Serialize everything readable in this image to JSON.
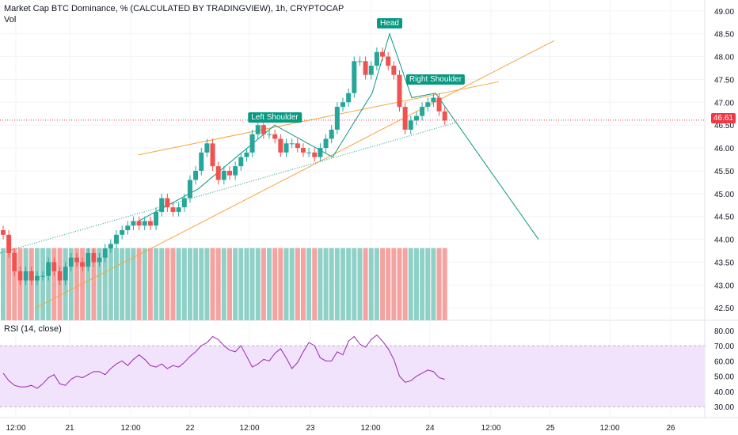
{
  "title": "Market Cap BTC Dominance, % (CALCULATED BY TRADINGVIEW), 1h, CRYPTOCAP",
  "vol_label": "Vol",
  "rsi_label": "RSI (14, close)",
  "annotations": {
    "left_shoulder": "Left Shoulder",
    "head": "Head",
    "right_shoulder": "Right Shoulder"
  },
  "last_price_label": "46.61",
  "colors": {
    "up": "#26a69a",
    "down": "#ef5350",
    "vol_up": "#8fd1c7",
    "vol_down": "#f4a3a0",
    "trend": "#f7a43c",
    "pattern": "#089981",
    "rsi_line": "#9c27b0",
    "rsi_band": "#f1e3fb",
    "price_line": "#f23645",
    "grid": "#f0f3fa",
    "axis_text": "#131722"
  },
  "chart_data": [
    {
      "type": "candlestick",
      "title": "Market Cap BTC Dominance, % (CALCULATED BY TRADINGVIEW), 1h, CRYPTOCAP",
      "y_axis_ticks": [
        "49.00",
        "48.50",
        "48.00",
        "47.50",
        "47.00",
        "46.50",
        "46.00",
        "45.50",
        "45.00",
        "44.50",
        "44.00",
        "43.50",
        "43.00",
        "42.50"
      ],
      "x_axis_ticks": [
        "12:00",
        "21",
        "12:00",
        "22",
        "12:00",
        "23",
        "12:00",
        "24",
        "12:00",
        "25",
        "12:00",
        "26"
      ],
      "ylim": [
        42.4,
        49.1
      ],
      "last_price": 46.61,
      "closes": [
        44.1,
        43.7,
        43.3,
        43.1,
        43.3,
        43.1,
        43.2,
        43.2,
        43.5,
        43.3,
        43.1,
        43.4,
        43.6,
        43.5,
        43.4,
        43.7,
        43.5,
        43.6,
        43.8,
        43.9,
        44.1,
        44.2,
        44.3,
        44.4,
        44.3,
        44.4,
        44.3,
        44.6,
        44.9,
        44.7,
        44.6,
        44.7,
        44.9,
        45.3,
        45.5,
        45.9,
        46.1,
        45.6,
        45.3,
        45.5,
        45.4,
        45.6,
        45.8,
        45.9,
        46.3,
        46.5,
        46.3,
        46.3,
        46.2,
        45.9,
        46.1,
        46.1,
        46.0,
        45.9,
        45.9,
        45.8,
        46.0,
        46.2,
        46.4,
        46.9,
        47.0,
        47.2,
        47.9,
        47.9,
        47.6,
        47.8,
        48.1,
        48.0,
        47.8,
        47.6,
        46.9,
        46.4,
        46.6,
        46.7,
        46.9,
        47.0,
        47.1,
        46.8,
        46.6
      ],
      "volume_levels": [
        0.87,
        0.87,
        0.87,
        0.87,
        0.87,
        0.87,
        0.87,
        0.87,
        0.87,
        0.87,
        0.87,
        0.87,
        0.87,
        0.87,
        0.87,
        0.87,
        0.87,
        0.87,
        0.87,
        0.87,
        0.87,
        0.87,
        0.87,
        0.87,
        0.87,
        0.87,
        0.87,
        0.87,
        0.87,
        0.87,
        0.87,
        0.87,
        0.87,
        0.87,
        0.87,
        0.87,
        0.87,
        0.87,
        0.87,
        0.87,
        0.87,
        0.87,
        0.87,
        0.87,
        0.87,
        0.87,
        0.87,
        0.87,
        0.87,
        0.87,
        0.87,
        0.87,
        0.87,
        0.87,
        0.87,
        0.87,
        0.87,
        0.87,
        0.87,
        0.87,
        0.87,
        0.87,
        0.87,
        0.87,
        0.87,
        0.87,
        0.87,
        0.87,
        0.87,
        0.87,
        0.87,
        0.87,
        0.87,
        0.87,
        0.87,
        0.87,
        0.87,
        0.87,
        0.87
      ]
    },
    {
      "type": "line",
      "title": "RSI (14, close)",
      "y_axis_ticks": [
        "80.00",
        "70.00",
        "60.00",
        "50.00",
        "40.00",
        "30.00"
      ],
      "ylim": [
        27,
        83
      ],
      "band": [
        30,
        70
      ],
      "values": [
        52,
        47,
        44,
        43,
        43,
        44,
        42,
        45,
        49,
        51,
        45,
        44,
        48,
        50,
        49,
        51,
        53,
        53,
        51,
        55,
        58,
        60,
        57,
        61,
        64,
        61,
        57,
        56,
        58,
        55,
        57,
        56,
        59,
        63,
        66,
        70,
        72,
        76,
        74,
        70,
        67,
        66,
        70,
        63,
        56,
        58,
        61,
        60,
        65,
        68,
        62,
        55,
        59,
        66,
        72,
        70,
        62,
        60,
        60,
        66,
        64,
        73,
        76,
        71,
        69,
        74,
        77,
        73,
        68,
        61,
        50,
        46,
        47,
        50,
        52,
        54,
        53,
        49,
        48
      ],
      "x": "shared"
    }
  ]
}
